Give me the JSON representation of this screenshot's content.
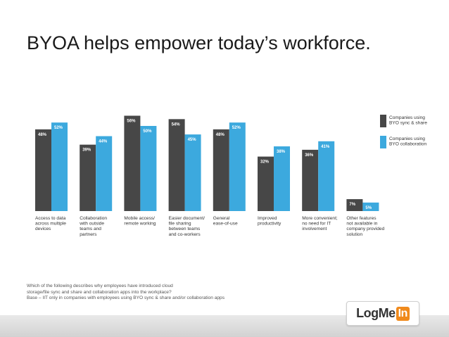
{
  "slide": {
    "title": "BYOA helps empower today’s workforce.",
    "footnote_lines": [
      "Which of the following describes why employees have introduced cloud",
      "storage/file sync and share and collaboration apps into the workplace?",
      "Base – IIT only in companies with employees using BYO sync & share and/or collaboration apps"
    ],
    "logo": {
      "text_main": "LogMe",
      "text_in": "In",
      "accent": "#f08a1c"
    }
  },
  "chart_data": {
    "type": "bar",
    "title": "",
    "xlabel": "",
    "ylabel": "",
    "ylim": [
      0,
      60
    ],
    "grid": false,
    "legend_position": "right",
    "categories": [
      [
        "Access to data",
        "across multiple",
        "devices"
      ],
      [
        "Collaboration",
        "with outside",
        "teams and",
        "partners"
      ],
      [
        "Mobile access/",
        "remote working"
      ],
      [
        "Easier document/",
        "file sharing",
        "between teams",
        "and co-workers"
      ],
      [
        "General",
        "ease-of-use"
      ],
      [
        "Improved",
        "productivity"
      ],
      [
        "More convenient;",
        "no need for IT",
        "involvement"
      ],
      [
        "Other features",
        "not available in",
        "company provided",
        "solution"
      ]
    ],
    "series": [
      {
        "name": [
          "Companies using",
          "BYO sync & share"
        ],
        "color": "#474747",
        "values": [
          48,
          39,
          56,
          54,
          48,
          32,
          36,
          7
        ],
        "labels": [
          "48%",
          "39%",
          "56%",
          "54%",
          "48%",
          "32%",
          "36%",
          "7%"
        ]
      },
      {
        "name": [
          "Companies using",
          "BYO collaboration"
        ],
        "color": "#3ca9de",
        "values": [
          52,
          44,
          50,
          45,
          52,
          38,
          41,
          5
        ],
        "labels": [
          "52%",
          "44%",
          "50%",
          "45%",
          "52%",
          "38%",
          "41%",
          "5%"
        ]
      }
    ]
  }
}
